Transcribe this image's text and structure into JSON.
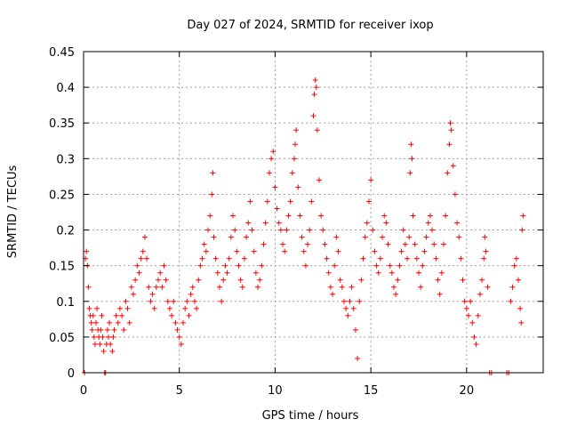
{
  "chart_data": {
    "type": "scatter",
    "title": "Day 027 of 2024, SRMTID for receiver ixop",
    "xlabel": "GPS time / hours",
    "ylabel": "SRMTID / TECUs",
    "xlim": [
      0,
      24
    ],
    "ylim": [
      0,
      0.45
    ],
    "xticks": [
      0,
      5,
      10,
      15,
      20
    ],
    "yticks": [
      0,
      0.05,
      0.1,
      0.15,
      0.2,
      0.25,
      0.3,
      0.35,
      0.4,
      0.45
    ],
    "xtick_labels": [
      "0",
      "5",
      "10",
      "15",
      "20"
    ],
    "ytick_labels": [
      "0",
      "0.05",
      "0.1",
      "0.15",
      "0.2",
      "0.25",
      "0.3",
      "0.35",
      "0.4",
      "0.45"
    ],
    "grid": true,
    "marker": "+",
    "color": "#ff0000",
    "series": [
      {
        "name": "SRMTID",
        "points": [
          [
            0.05,
            0
          ],
          [
            0.1,
            0.16
          ],
          [
            0.15,
            0.17
          ],
          [
            0.2,
            0.15
          ],
          [
            0.25,
            0.12
          ],
          [
            0.3,
            0.09
          ],
          [
            0.35,
            0.08
          ],
          [
            0.4,
            0.07
          ],
          [
            0.45,
            0.06
          ],
          [
            0.5,
            0.08
          ],
          [
            0.55,
            0.05
          ],
          [
            0.6,
            0.04
          ],
          [
            0.65,
            0.07
          ],
          [
            0.7,
            0.09
          ],
          [
            0.75,
            0.06
          ],
          [
            0.8,
            0.05
          ],
          [
            0.85,
            0.04
          ],
          [
            0.9,
            0.06
          ],
          [
            0.95,
            0.08
          ],
          [
            1.0,
            0.05
          ],
          [
            1.05,
            0.03
          ],
          [
            1.1,
            0
          ],
          [
            1.15,
            0
          ],
          [
            1.2,
            0.04
          ],
          [
            1.25,
            0.06
          ],
          [
            1.3,
            0.05
          ],
          [
            1.35,
            0.07
          ],
          [
            1.4,
            0.04
          ],
          [
            1.5,
            0.03
          ],
          [
            1.55,
            0.05
          ],
          [
            1.6,
            0.06
          ],
          [
            1.7,
            0.08
          ],
          [
            1.8,
            0.07
          ],
          [
            1.9,
            0.09
          ],
          [
            2.0,
            0.08
          ],
          [
            2.1,
            0.06
          ],
          [
            2.2,
            0.1
          ],
          [
            2.3,
            0.09
          ],
          [
            2.4,
            0.07
          ],
          [
            2.5,
            0.12
          ],
          [
            2.6,
            0.11
          ],
          [
            2.7,
            0.13
          ],
          [
            2.8,
            0.15
          ],
          [
            2.9,
            0.14
          ],
          [
            3.0,
            0.16
          ],
          [
            3.1,
            0.17
          ],
          [
            3.2,
            0.19
          ],
          [
            3.3,
            0.16
          ],
          [
            3.4,
            0.12
          ],
          [
            3.5,
            0.1
          ],
          [
            3.6,
            0.11
          ],
          [
            3.7,
            0.09
          ],
          [
            3.8,
            0.12
          ],
          [
            3.9,
            0.13
          ],
          [
            4.0,
            0.14
          ],
          [
            4.1,
            0.12
          ],
          [
            4.2,
            0.15
          ],
          [
            4.3,
            0.13
          ],
          [
            4.4,
            0.1
          ],
          [
            4.5,
            0.09
          ],
          [
            4.6,
            0.08
          ],
          [
            4.7,
            0.1
          ],
          [
            4.8,
            0.07
          ],
          [
            4.9,
            0.06
          ],
          [
            5.0,
            0.05
          ],
          [
            5.1,
            0.04
          ],
          [
            5.2,
            0.07
          ],
          [
            5.3,
            0.09
          ],
          [
            5.4,
            0.1
          ],
          [
            5.5,
            0.08
          ],
          [
            5.6,
            0.11
          ],
          [
            5.7,
            0.12
          ],
          [
            5.8,
            0.1
          ],
          [
            5.9,
            0.09
          ],
          [
            6.0,
            0.13
          ],
          [
            6.1,
            0.15
          ],
          [
            6.2,
            0.16
          ],
          [
            6.3,
            0.18
          ],
          [
            6.4,
            0.17
          ],
          [
            6.5,
            0.2
          ],
          [
            6.6,
            0.22
          ],
          [
            6.7,
            0.25
          ],
          [
            6.75,
            0.28
          ],
          [
            6.8,
            0.19
          ],
          [
            6.9,
            0.16
          ],
          [
            7.0,
            0.14
          ],
          [
            7.1,
            0.12
          ],
          [
            7.2,
            0.1
          ],
          [
            7.3,
            0.13
          ],
          [
            7.4,
            0.15
          ],
          [
            7.5,
            0.14
          ],
          [
            7.6,
            0.16
          ],
          [
            7.7,
            0.19
          ],
          [
            7.8,
            0.22
          ],
          [
            7.9,
            0.2
          ],
          [
            8.0,
            0.17
          ],
          [
            8.1,
            0.15
          ],
          [
            8.2,
            0.13
          ],
          [
            8.3,
            0.12
          ],
          [
            8.4,
            0.16
          ],
          [
            8.5,
            0.19
          ],
          [
            8.6,
            0.21
          ],
          [
            8.7,
            0.24
          ],
          [
            8.8,
            0.2
          ],
          [
            8.9,
            0.17
          ],
          [
            9.0,
            0.14
          ],
          [
            9.1,
            0.12
          ],
          [
            9.2,
            0.13
          ],
          [
            9.3,
            0.15
          ],
          [
            9.4,
            0.18
          ],
          [
            9.5,
            0.21
          ],
          [
            9.6,
            0.24
          ],
          [
            9.7,
            0.28
          ],
          [
            9.8,
            0.3
          ],
          [
            9.9,
            0.31
          ],
          [
            10.0,
            0.26
          ],
          [
            10.1,
            0.23
          ],
          [
            10.2,
            0.21
          ],
          [
            10.3,
            0.2
          ],
          [
            10.4,
            0.18
          ],
          [
            10.5,
            0.17
          ],
          [
            10.6,
            0.2
          ],
          [
            10.7,
            0.22
          ],
          [
            10.8,
            0.24
          ],
          [
            10.9,
            0.28
          ],
          [
            11.0,
            0.3
          ],
          [
            11.05,
            0.32
          ],
          [
            11.1,
            0.34
          ],
          [
            11.2,
            0.26
          ],
          [
            11.3,
            0.22
          ],
          [
            11.4,
            0.19
          ],
          [
            11.5,
            0.17
          ],
          [
            11.6,
            0.15
          ],
          [
            11.7,
            0.18
          ],
          [
            11.8,
            0.2
          ],
          [
            11.9,
            0.24
          ],
          [
            12.0,
            0.36
          ],
          [
            12.05,
            0.39
          ],
          [
            12.1,
            0.41
          ],
          [
            12.15,
            0.4
          ],
          [
            12.2,
            0.34
          ],
          [
            12.3,
            0.27
          ],
          [
            12.4,
            0.22
          ],
          [
            12.5,
            0.2
          ],
          [
            12.6,
            0.18
          ],
          [
            12.7,
            0.16
          ],
          [
            12.8,
            0.14
          ],
          [
            12.9,
            0.12
          ],
          [
            13.0,
            0.11
          ],
          [
            13.1,
            0.15
          ],
          [
            13.2,
            0.19
          ],
          [
            13.3,
            0.17
          ],
          [
            13.4,
            0.13
          ],
          [
            13.5,
            0.12
          ],
          [
            13.6,
            0.1
          ],
          [
            13.7,
            0.09
          ],
          [
            13.8,
            0.08
          ],
          [
            13.9,
            0.1
          ],
          [
            14.0,
            0.12
          ],
          [
            14.1,
            0.09
          ],
          [
            14.2,
            0.06
          ],
          [
            14.3,
            0.02
          ],
          [
            14.4,
            0.1
          ],
          [
            14.5,
            0.13
          ],
          [
            14.6,
            0.16
          ],
          [
            14.7,
            0.19
          ],
          [
            14.8,
            0.21
          ],
          [
            14.9,
            0.24
          ],
          [
            15.0,
            0.27
          ],
          [
            15.1,
            0.2
          ],
          [
            15.2,
            0.17
          ],
          [
            15.3,
            0.15
          ],
          [
            15.4,
            0.14
          ],
          [
            15.5,
            0.16
          ],
          [
            15.6,
            0.19
          ],
          [
            15.7,
            0.22
          ],
          [
            15.8,
            0.21
          ],
          [
            15.9,
            0.18
          ],
          [
            16.0,
            0.15
          ],
          [
            16.1,
            0.14
          ],
          [
            16.2,
            0.12
          ],
          [
            16.3,
            0.11
          ],
          [
            16.4,
            0.13
          ],
          [
            16.5,
            0.15
          ],
          [
            16.6,
            0.17
          ],
          [
            16.7,
            0.2
          ],
          [
            16.8,
            0.18
          ],
          [
            16.9,
            0.16
          ],
          [
            17.0,
            0.19
          ],
          [
            17.05,
            0.28
          ],
          [
            17.1,
            0.32
          ],
          [
            17.15,
            0.3
          ],
          [
            17.2,
            0.22
          ],
          [
            17.3,
            0.18
          ],
          [
            17.4,
            0.16
          ],
          [
            17.5,
            0.14
          ],
          [
            17.6,
            0.12
          ],
          [
            17.7,
            0.15
          ],
          [
            17.8,
            0.17
          ],
          [
            17.9,
            0.19
          ],
          [
            18.0,
            0.21
          ],
          [
            18.1,
            0.22
          ],
          [
            18.2,
            0.2
          ],
          [
            18.3,
            0.18
          ],
          [
            18.4,
            0.16
          ],
          [
            18.5,
            0.13
          ],
          [
            18.6,
            0.11
          ],
          [
            18.7,
            0.14
          ],
          [
            18.8,
            0.18
          ],
          [
            18.9,
            0.22
          ],
          [
            19.0,
            0.28
          ],
          [
            19.1,
            0.32
          ],
          [
            19.15,
            0.35
          ],
          [
            19.2,
            0.34
          ],
          [
            19.3,
            0.29
          ],
          [
            19.4,
            0.25
          ],
          [
            19.5,
            0.21
          ],
          [
            19.6,
            0.19
          ],
          [
            19.7,
            0.16
          ],
          [
            19.8,
            0.13
          ],
          [
            19.9,
            0.1
          ],
          [
            20.0,
            0.09
          ],
          [
            20.1,
            0.08
          ],
          [
            20.2,
            0.1
          ],
          [
            20.3,
            0.07
          ],
          [
            20.4,
            0.05
          ],
          [
            20.5,
            0.04
          ],
          [
            20.6,
            0.08
          ],
          [
            20.7,
            0.11
          ],
          [
            20.8,
            0.13
          ],
          [
            20.9,
            0.16
          ],
          [
            20.95,
            0.19
          ],
          [
            21.0,
            0.17
          ],
          [
            21.1,
            0.12
          ],
          [
            21.2,
            0
          ],
          [
            21.3,
            0
          ],
          [
            22.1,
            0
          ],
          [
            22.2,
            0
          ],
          [
            22.3,
            0.1
          ],
          [
            22.4,
            0.12
          ],
          [
            22.5,
            0.15
          ],
          [
            22.6,
            0.16
          ],
          [
            22.7,
            0.13
          ],
          [
            22.8,
            0.09
          ],
          [
            22.85,
            0.07
          ],
          [
            22.9,
            0.2
          ],
          [
            22.95,
            0.22
          ]
        ]
      }
    ]
  }
}
